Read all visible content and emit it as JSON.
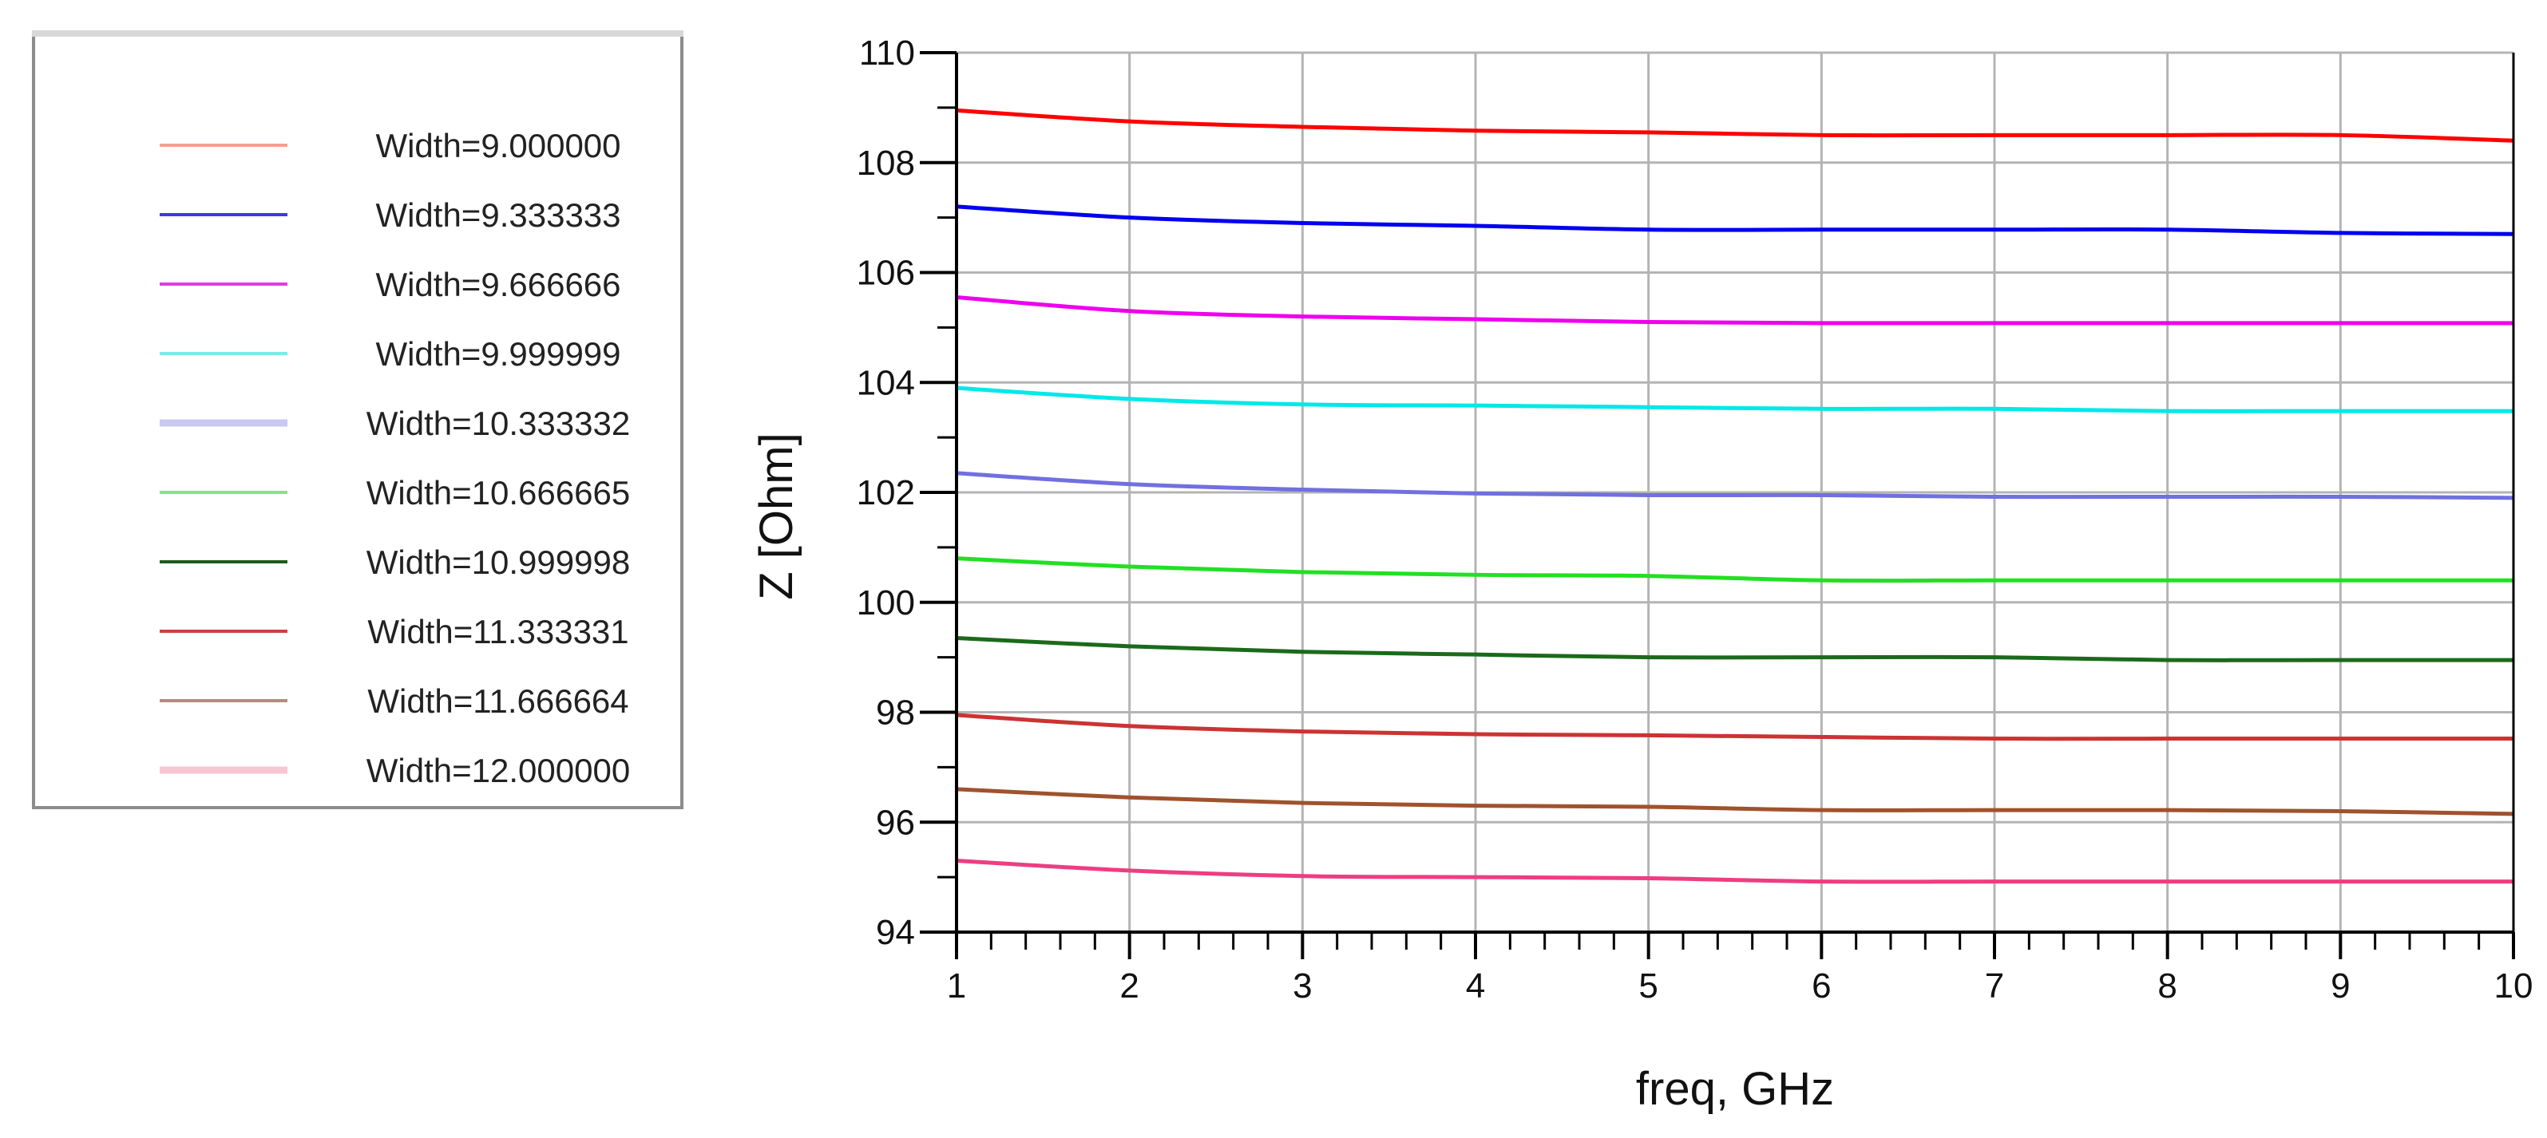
{
  "chart_data": {
    "type": "line",
    "title": "",
    "xlabel": "freq, GHz",
    "ylabel": "Z [Ohm]",
    "xlim": [
      1,
      10
    ],
    "ylim": [
      94,
      110
    ],
    "xticks": [
      1,
      2,
      3,
      4,
      5,
      6,
      7,
      8,
      9,
      10
    ],
    "yticks": [
      94,
      96,
      98,
      100,
      102,
      104,
      106,
      108,
      110
    ],
    "grid": true,
    "legend_position": "left",
    "x": [
      1,
      2,
      3,
      4,
      5,
      6,
      7,
      8,
      9,
      10
    ],
    "series": [
      {
        "name": "Width=9.000000",
        "legend_color": "#f4a08c",
        "color": "#ff0000",
        "values": [
          108.95,
          108.75,
          108.65,
          108.58,
          108.55,
          108.5,
          108.5,
          108.5,
          108.5,
          108.4
        ]
      },
      {
        "name": "Width=9.333333",
        "legend_color": "#3b3bdc",
        "color": "#0000ee",
        "values": [
          107.2,
          107.0,
          106.9,
          106.85,
          106.78,
          106.78,
          106.78,
          106.78,
          106.72,
          106.7
        ]
      },
      {
        "name": "Width=9.666666",
        "legend_color": "#e03ce0",
        "color": "#ee00ee",
        "values": [
          105.55,
          105.3,
          105.2,
          105.15,
          105.1,
          105.08,
          105.08,
          105.08,
          105.08,
          105.08
        ]
      },
      {
        "name": "Width=9.999999",
        "legend_color": "#7fe8e8",
        "color": "#00e8e8",
        "values": [
          103.9,
          103.7,
          103.6,
          103.58,
          103.55,
          103.52,
          103.52,
          103.48,
          103.48,
          103.48
        ]
      },
      {
        "name": "Width=10.333332",
        "legend_color": "#c8c8f0",
        "color": "#7070e0",
        "values": [
          102.35,
          102.15,
          102.05,
          101.98,
          101.95,
          101.95,
          101.92,
          101.92,
          101.92,
          101.9
        ]
      },
      {
        "name": "Width=10.666665",
        "legend_color": "#7fe87f",
        "color": "#22e022",
        "values": [
          100.8,
          100.65,
          100.55,
          100.5,
          100.48,
          100.4,
          100.4,
          100.4,
          100.4,
          100.4
        ]
      },
      {
        "name": "Width=10.999998",
        "legend_color": "#1e5a1e",
        "color": "#1a6a1a",
        "values": [
          99.35,
          99.2,
          99.1,
          99.05,
          99.0,
          99.0,
          99.0,
          98.95,
          98.95,
          98.95
        ]
      },
      {
        "name": "Width=11.333331",
        "legend_color": "#c84040",
        "color": "#cc3333",
        "values": [
          97.95,
          97.75,
          97.65,
          97.6,
          97.58,
          97.55,
          97.52,
          97.52,
          97.52,
          97.52
        ]
      },
      {
        "name": "Width=11.666664",
        "legend_color": "#b48c80",
        "color": "#a0522d",
        "values": [
          96.6,
          96.45,
          96.35,
          96.3,
          96.28,
          96.22,
          96.22,
          96.22,
          96.2,
          96.15
        ]
      },
      {
        "name": "Width=12.000000",
        "legend_color": "#f6c6d2",
        "color": "#ee3d82",
        "values": [
          95.3,
          95.12,
          95.02,
          95.0,
          94.98,
          94.92,
          94.92,
          94.92,
          94.92,
          94.92
        ]
      }
    ]
  }
}
